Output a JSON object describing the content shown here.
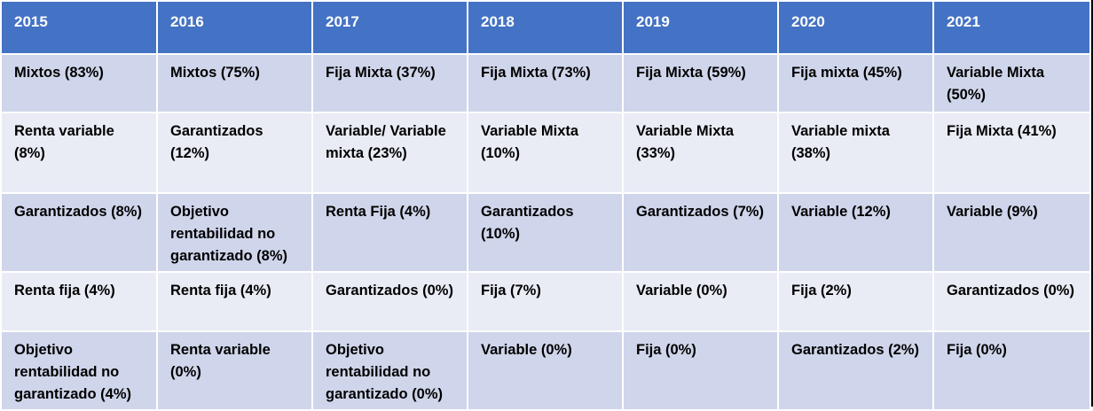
{
  "table": {
    "headers": [
      "2015",
      "2016",
      "2017",
      "2018",
      "2019",
      "2020",
      "2021"
    ],
    "rows": [
      [
        "Mixtos (83%)",
        "Mixtos (75%)",
        "Fija Mixta (37%)",
        "Fija Mixta (73%)",
        "Fija Mixta (59%)",
        "Fija mixta (45%)",
        "Variable Mixta (50%)"
      ],
      [
        "Renta variable (8%)",
        "Garantizados (12%)",
        "Variable/ Variable mixta (23%)",
        "Variable Mixta (10%)",
        "Variable Mixta (33%)",
        "Variable mixta (38%)",
        "Fija Mixta (41%)"
      ],
      [
        "Garantizados (8%)",
        "Objetivo rentabilidad no garantizado (8%)",
        "Renta Fija (4%)",
        "Garantizados (10%)",
        "Garantizados (7%)",
        "Variable (12%)",
        "Variable (9%)"
      ],
      [
        "Renta fija (4%)",
        "Renta fija (4%)",
        "Garantizados (0%)",
        "Fija (7%)",
        "Variable (0%)",
        "Fija (2%)",
        "Garantizados (0%)"
      ],
      [
        "Objetivo rentabilidad no garantizado (4%)",
        "Renta variable (0%)",
        "Objetivo rentabilidad no garantizado (0%)",
        "Variable (0%)",
        "Fija (0%)",
        "Garantizados (2%)",
        "Fija (0%)"
      ]
    ]
  },
  "colors": {
    "header_bg": "#4472c4",
    "row_odd_bg": "#cfd5ea",
    "row_even_bg": "#e9ebf5",
    "header_text": "#ffffff",
    "body_text": "#000000"
  }
}
